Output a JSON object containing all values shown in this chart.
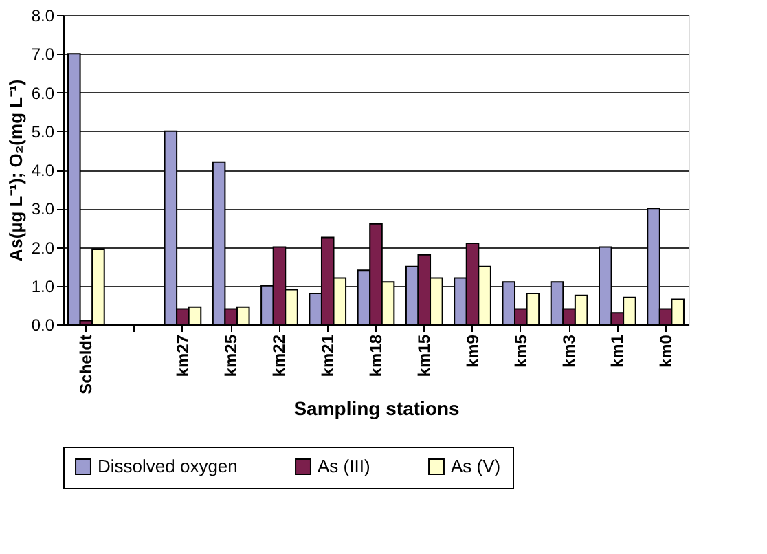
{
  "chart_data": {
    "type": "bar",
    "xlabel": "Sampling stations",
    "ylabel": "As(µg L⁻¹); O₂(mg L⁻¹)",
    "categories": [
      "Scheldt",
      null,
      "km27",
      "km25",
      "km22",
      "km21",
      "km18",
      "km15",
      "km9",
      "km5",
      "km3",
      "km1",
      "km0"
    ],
    "series": [
      {
        "name": "Dissolved oxygen",
        "color": "#9c9cd0",
        "values": [
          7.0,
          null,
          5.0,
          4.2,
          1.0,
          0.8,
          1.4,
          1.5,
          1.2,
          1.1,
          1.1,
          2.0,
          3.0
        ]
      },
      {
        "name": "As (III)",
        "color": "#7b1f4c",
        "values": [
          0.1,
          null,
          0.4,
          0.4,
          2.0,
          2.25,
          2.6,
          1.8,
          2.1,
          0.4,
          0.4,
          0.3,
          0.4
        ]
      },
      {
        "name": "As (V)",
        "color": "#ffffcc",
        "values": [
          1.95,
          null,
          0.45,
          0.45,
          0.9,
          1.2,
          1.1,
          1.2,
          1.5,
          0.8,
          0.75,
          0.7,
          0.65
        ]
      }
    ],
    "ylim": [
      0,
      8
    ],
    "yticks": [
      {
        "value": 0,
        "label": "0.0"
      },
      {
        "value": 1,
        "label": "1.0"
      },
      {
        "value": 2,
        "label": "2.0"
      },
      {
        "value": 3,
        "label": "3.0"
      },
      {
        "value": 4,
        "label": "4.0"
      },
      {
        "value": 5,
        "label": "5.0"
      },
      {
        "value": 6,
        "label": "6.0"
      },
      {
        "value": 7,
        "label": "7.0"
      },
      {
        "value": 8,
        "label": "8.0"
      }
    ],
    "grid": "y",
    "legend": "bottom"
  }
}
